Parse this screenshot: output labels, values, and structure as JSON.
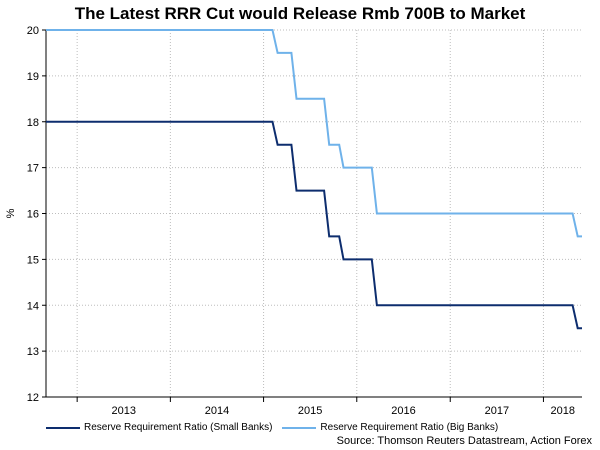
{
  "chart_data": {
    "type": "line",
    "title": "The Latest RRR Cut would Release Rmb 700B to Market",
    "xlabel": "",
    "ylabel": "%",
    "ylim": [
      12,
      20
    ],
    "yticks": [
      12,
      13,
      14,
      15,
      16,
      17,
      18,
      19,
      20
    ],
    "xlim": [
      "2012-09-01",
      "2018-06-01"
    ],
    "xticks": [
      "2013",
      "2014",
      "2015",
      "2016",
      "2017",
      "2018"
    ],
    "grid": true,
    "legend_position": "bottom-left",
    "series": [
      {
        "name": "Reserve Requirement Ratio (Small Banks)",
        "color": "#0d2d6e",
        "x": [
          "2012-09-01",
          "2015-02-05",
          "2015-02-25",
          "2015-04-20",
          "2015-05-10",
          "2015-08-26",
          "2015-09-15",
          "2015-10-24",
          "2015-11-10",
          "2016-02-29",
          "2016-03-20",
          "2018-04-25",
          "2018-05-15",
          "2018-06-01"
        ],
        "y": [
          18,
          18,
          17.5,
          17.5,
          16.5,
          16.5,
          15.5,
          15.5,
          15,
          15,
          14,
          14,
          13.5,
          13.5
        ]
      },
      {
        "name": "Reserve Requirement Ratio (Big Banks)",
        "color": "#6fb2ea",
        "x": [
          "2012-09-01",
          "2015-02-05",
          "2015-02-25",
          "2015-04-20",
          "2015-05-10",
          "2015-08-26",
          "2015-09-15",
          "2015-10-24",
          "2015-11-10",
          "2016-02-29",
          "2016-03-20",
          "2018-04-25",
          "2018-05-15",
          "2018-06-01"
        ],
        "y": [
          20,
          20,
          19.5,
          19.5,
          18.5,
          18.5,
          17.5,
          17.5,
          17,
          17,
          16,
          16,
          15.5,
          15.5
        ]
      }
    ]
  },
  "source": "Source: Thomson Reuters Datastream, Action Forex"
}
